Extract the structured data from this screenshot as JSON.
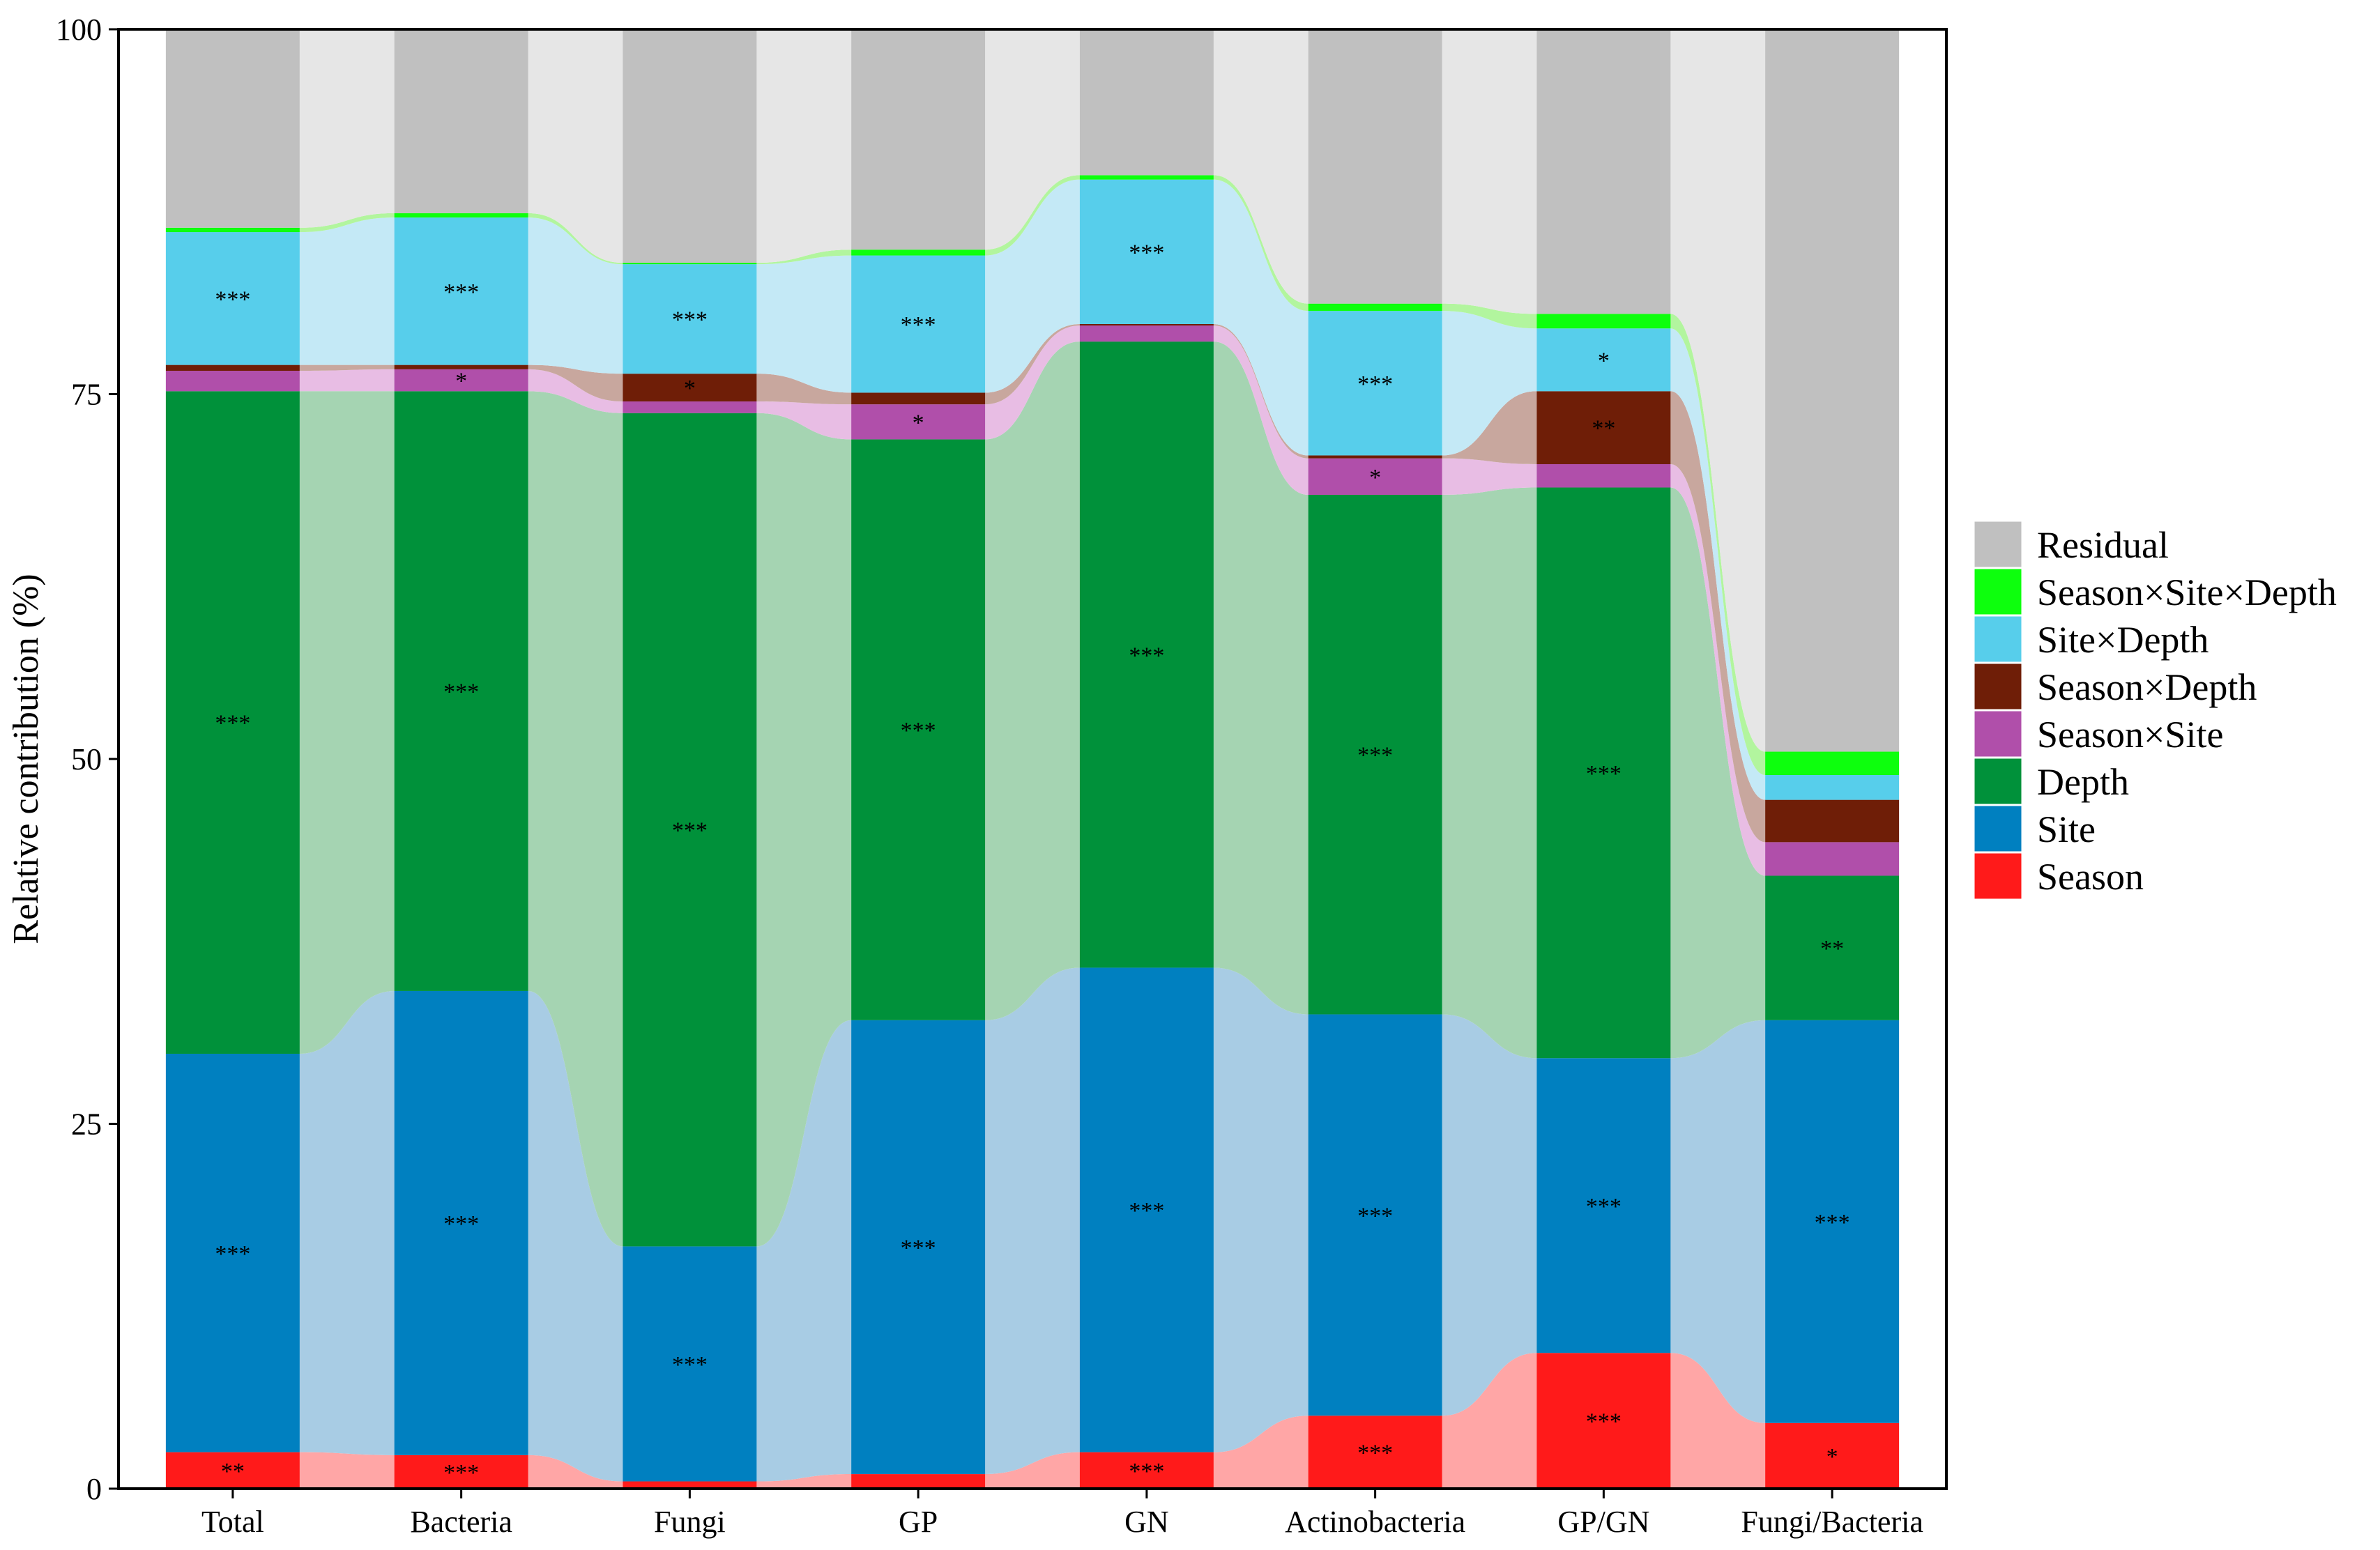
{
  "chart_data": {
    "type": "alluvial-stacked-bar",
    "title": "",
    "xlabel": "",
    "ylabel": "Relative contribution (%)",
    "ylim": [
      0,
      100
    ],
    "yticks": [
      "0",
      "25",
      "50",
      "75",
      "100"
    ],
    "categories": [
      "Total",
      "Bacteria",
      "Fungi",
      "GP",
      "GN",
      "Actinobacteria",
      "GP/GN",
      "Fungi/Bacteria"
    ],
    "legend_position": "right",
    "series": [
      {
        "name": "Season",
        "color": "#FF1A1A",
        "flow_color": "#FFA6A6",
        "values": [
          2.5,
          2.3,
          0.5,
          1.0,
          2.5,
          5.0,
          9.3,
          4.5
        ],
        "sig": [
          "**",
          "***",
          "",
          "",
          "***",
          "***",
          "***",
          "*"
        ]
      },
      {
        "name": "Site",
        "color": "#0080C0",
        "flow_color": "#A8CCE4",
        "values": [
          27.3,
          31.8,
          16.1,
          31.1,
          33.2,
          27.5,
          20.2,
          27.6
        ],
        "sig": [
          "***",
          "***",
          "***",
          "***",
          "***",
          "***",
          "***",
          "***"
        ]
      },
      {
        "name": "Depth",
        "color": "#00913A",
        "flow_color": "#A5D4B2",
        "values": [
          45.4,
          41.1,
          57.1,
          39.8,
          42.9,
          35.6,
          39.1,
          9.9
        ],
        "sig": [
          "***",
          "***",
          "***",
          "***",
          "***",
          "***",
          "***",
          "**"
        ]
      },
      {
        "name": "Season×Site",
        "color": "#B04FAA",
        "flow_color": "#E8BDE4",
        "values": [
          1.4,
          1.5,
          0.8,
          2.4,
          1.1,
          2.5,
          1.6,
          2.3
        ],
        "sig": [
          "",
          "*",
          "",
          "*",
          "",
          "*",
          "",
          ""
        ]
      },
      {
        "name": "Season×Depth",
        "color": "#6F1E07",
        "flow_color": "#C8A79E",
        "values": [
          0.4,
          0.3,
          1.9,
          0.8,
          0.1,
          0.2,
          5.0,
          2.9
        ],
        "sig": [
          "",
          "",
          "*",
          "",
          "",
          "",
          "**",
          ""
        ]
      },
      {
        "name": "Site×Depth",
        "color": "#57CEEB",
        "flow_color": "#C4E9F6",
        "values": [
          9.1,
          10.1,
          7.5,
          9.4,
          9.9,
          9.9,
          4.3,
          1.7
        ],
        "sig": [
          "***",
          "***",
          "***",
          "***",
          "***",
          "***",
          "*",
          ""
        ]
      },
      {
        "name": "Season×Site×Depth",
        "color": "#0DFF0D",
        "flow_color": "#B2F59E",
        "values": [
          0.3,
          0.3,
          0.1,
          0.4,
          0.3,
          0.5,
          1.0,
          1.6
        ],
        "sig": [
          "",
          "",
          "",
          "",
          "",
          "",
          "",
          ""
        ]
      },
      {
        "name": "Residual",
        "color": "#C0C0C0",
        "flow_color": "#E6E6E6",
        "values": [
          13.6,
          12.6,
          16.0,
          15.1,
          10.0,
          18.8,
          19.5,
          49.5
        ],
        "sig": [
          "",
          "",
          "",
          "",
          "",
          "",
          "",
          ""
        ]
      }
    ]
  }
}
